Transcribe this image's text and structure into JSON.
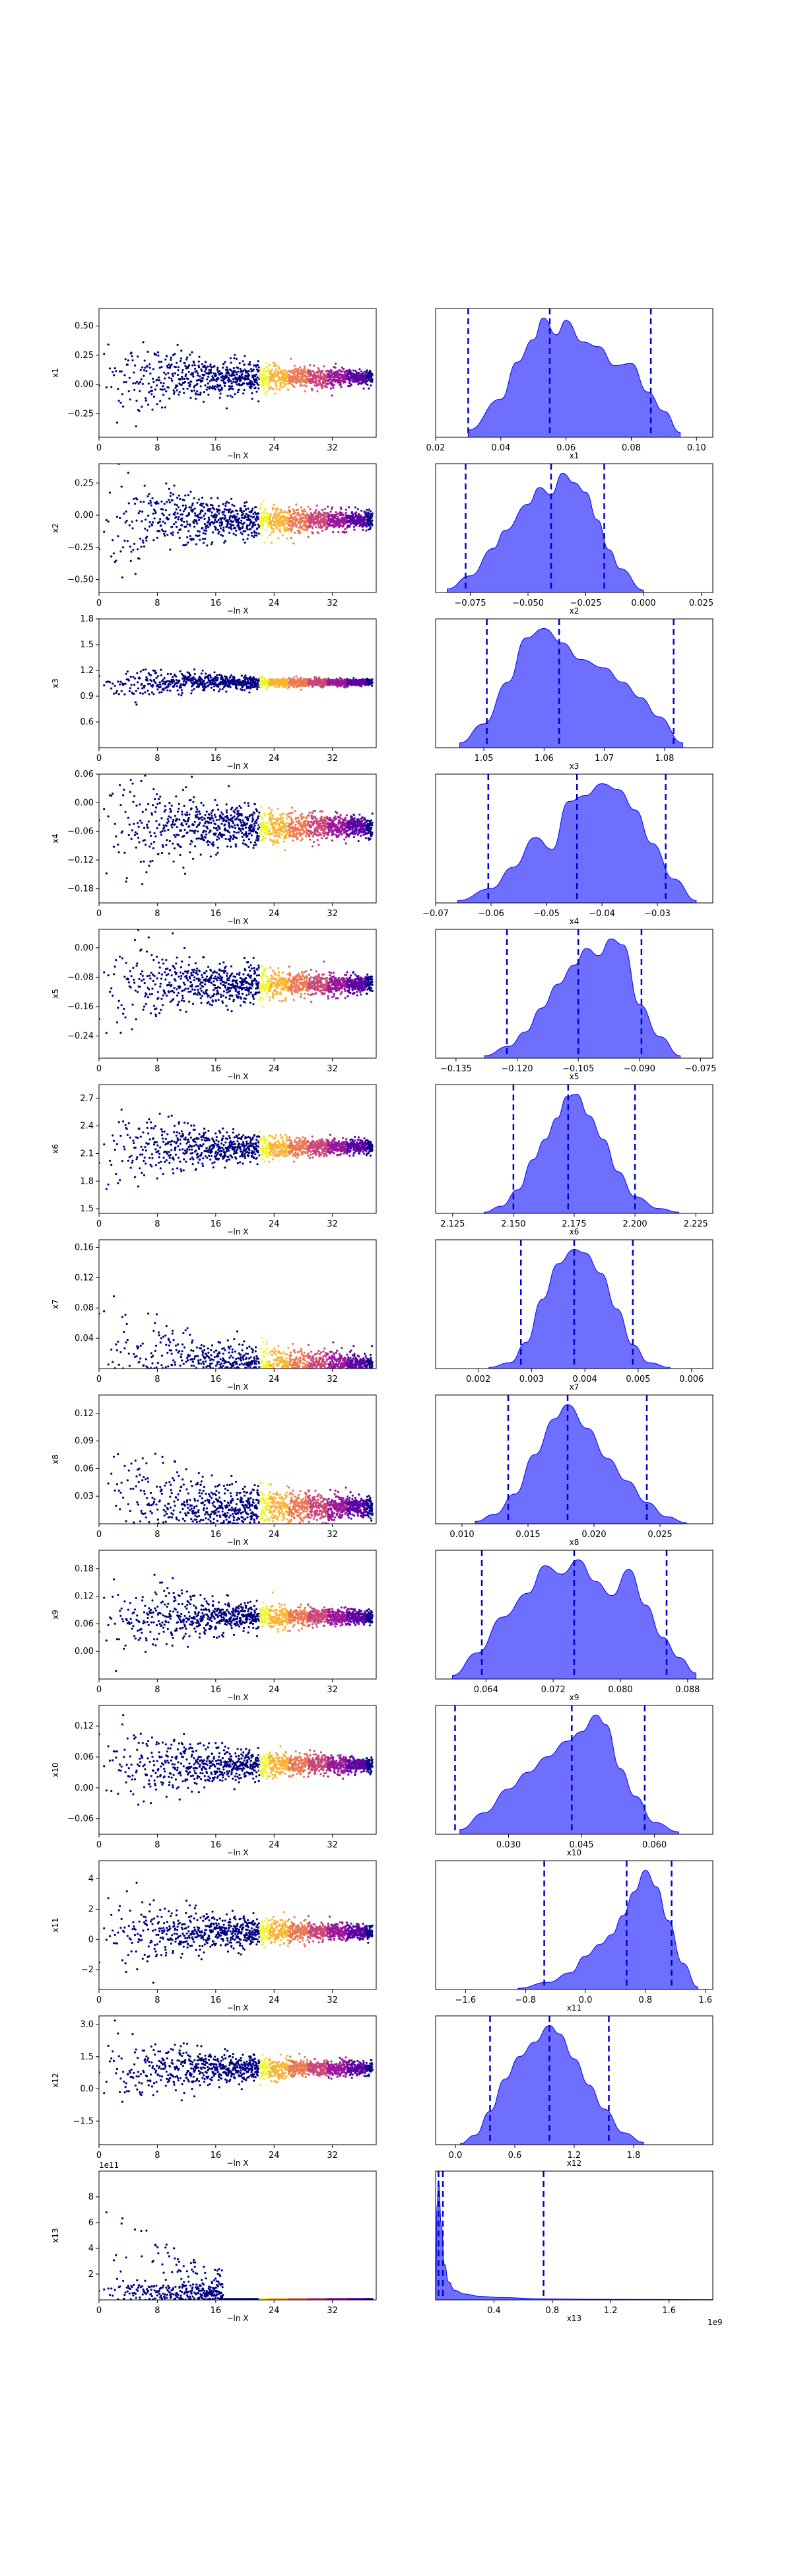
{
  "chart_data": [
    {
      "type": "scatter",
      "ylabel": "x1",
      "ylabel_sub": "1",
      "xlabel": "−ln X",
      "xlim": [
        0,
        38
      ],
      "xticks": [
        "0",
        "8",
        "16",
        "24",
        "32"
      ],
      "ylim": [
        -0.45,
        0.65
      ],
      "yticks": [
        "−0.25",
        "0.00",
        "0.25",
        "0.50"
      ],
      "ytick_values": [
        -0.25,
        0,
        0.25,
        0.5
      ],
      "start_spread": 0.22,
      "mean": 0.06
    },
    {
      "type": "area",
      "xlabel": "x1",
      "xlabel_sub": "1",
      "xlim": [
        0.02,
        0.105
      ],
      "xticks": [
        "0.02",
        "0.04",
        "0.06",
        "0.08",
        "0.10"
      ],
      "xtick_values": [
        0.02,
        0.04,
        0.06,
        0.08,
        0.1
      ],
      "x": [
        0.03,
        0.04,
        0.045,
        0.05,
        0.053,
        0.057,
        0.06,
        0.065,
        0.07,
        0.075,
        0.08,
        0.085,
        0.09,
        0.095
      ],
      "y": [
        0.06,
        0.32,
        0.63,
        0.82,
        1.0,
        0.86,
        0.98,
        0.8,
        0.76,
        0.6,
        0.62,
        0.38,
        0.22,
        0.04
      ],
      "quantile_lines": [
        0.03,
        0.055,
        0.086
      ]
    },
    {
      "type": "scatter",
      "ylabel": "x2",
      "ylabel_sub": "2",
      "xlabel": "−ln X",
      "xlim": [
        0,
        38
      ],
      "xticks": [
        "0",
        "8",
        "16",
        "24",
        "32"
      ],
      "ylim": [
        -0.6,
        0.4
      ],
      "yticks": [
        "−0.50",
        "−0.25",
        "0.00",
        "0.25"
      ],
      "ytick_values": [
        -0.5,
        -0.25,
        0,
        0.25
      ],
      "start_spread": 0.22,
      "mean": -0.04
    },
    {
      "type": "area",
      "xlabel": "x2",
      "xlabel_sub": "2",
      "xlim": [
        -0.09,
        0.03
      ],
      "xticks": [
        "−0.075",
        "−0.050",
        "−0.025",
        "0.000",
        "0.025"
      ],
      "xtick_values": [
        -0.075,
        -0.05,
        -0.025,
        0,
        0.025
      ],
      "x": [
        -0.085,
        -0.075,
        -0.065,
        -0.06,
        -0.05,
        -0.045,
        -0.04,
        -0.035,
        -0.03,
        -0.025,
        -0.02,
        -0.015,
        -0.01,
        0.0
      ],
      "y": [
        0.03,
        0.14,
        0.37,
        0.52,
        0.74,
        0.88,
        0.82,
        1.0,
        0.92,
        0.84,
        0.61,
        0.36,
        0.2,
        0.02
      ],
      "quantile_lines": [
        -0.077,
        -0.04,
        -0.017
      ]
    },
    {
      "type": "scatter",
      "ylabel": "x3",
      "ylabel_sub": "3",
      "xlabel": "−ln X",
      "xlim": [
        0,
        38
      ],
      "xticks": [
        "0",
        "8",
        "16",
        "24",
        "32"
      ],
      "ylim": [
        0.3,
        1.8
      ],
      "yticks": [
        "0.6",
        "0.9",
        "1.2",
        "1.5",
        "1.8"
      ],
      "ytick_values": [
        0.6,
        0.9,
        1.2,
        1.5,
        1.8
      ],
      "start_spread": 0.12,
      "mean": 1.06
    },
    {
      "type": "area",
      "xlabel": "x3",
      "xlabel_sub": "3",
      "xlim": [
        1.042,
        1.088
      ],
      "xticks": [
        "1.05",
        "1.06",
        "1.07",
        "1.08"
      ],
      "xtick_values": [
        1.05,
        1.06,
        1.07,
        1.08
      ],
      "x": [
        1.046,
        1.05,
        1.054,
        1.057,
        1.06,
        1.063,
        1.066,
        1.07,
        1.073,
        1.076,
        1.079,
        1.083
      ],
      "y": [
        0.04,
        0.2,
        0.55,
        0.92,
        1.0,
        0.88,
        0.74,
        0.67,
        0.55,
        0.42,
        0.26,
        0.04
      ],
      "quantile_lines": [
        1.0505,
        1.0625,
        1.0815
      ]
    },
    {
      "type": "scatter",
      "ylabel": "x4",
      "ylabel_sub": "4",
      "xlabel": "−ln X",
      "xlim": [
        0,
        38
      ],
      "xticks": [
        "0",
        "8",
        "16",
        "24",
        "32"
      ],
      "ylim": [
        -0.21,
        0.06
      ],
      "yticks": [
        "−0.18",
        "−0.12",
        "−0.06",
        "0.00",
        "0.06"
      ],
      "ytick_values": [
        -0.18,
        -0.12,
        -0.06,
        0,
        0.06
      ],
      "start_spread": 0.07,
      "mean": -0.05
    },
    {
      "type": "area",
      "xlabel": "x4",
      "xlabel_sub": "4",
      "xlim": [
        -0.07,
        -0.02
      ],
      "xticks": [
        "−0.07",
        "−0.06",
        "−0.05",
        "−0.04",
        "−0.03"
      ],
      "xtick_values": [
        -0.07,
        -0.06,
        -0.05,
        -0.04,
        -0.03
      ],
      "x": [
        -0.066,
        -0.06,
        -0.056,
        -0.052,
        -0.049,
        -0.046,
        -0.043,
        -0.04,
        -0.037,
        -0.034,
        -0.031,
        -0.027,
        -0.023
      ],
      "y": [
        0.02,
        0.12,
        0.3,
        0.55,
        0.45,
        0.85,
        0.9,
        1.0,
        0.95,
        0.78,
        0.5,
        0.2,
        0.02
      ],
      "quantile_lines": [
        -0.0605,
        -0.0445,
        -0.0285
      ]
    },
    {
      "type": "scatter",
      "ylabel": "x5",
      "ylabel_sub": "5",
      "xlabel": "−ln X",
      "xlim": [
        0,
        38
      ],
      "xticks": [
        "0",
        "8",
        "16",
        "24",
        "32"
      ],
      "ylim": [
        -0.3,
        0.05
      ],
      "yticks": [
        "−0.24",
        "−0.16",
        "−0.08",
        "0.00"
      ],
      "ytick_values": [
        -0.24,
        -0.16,
        -0.08,
        0
      ],
      "start_spread": 0.08,
      "mean": -0.1
    },
    {
      "type": "area",
      "xlabel": "x5",
      "xlabel_sub": "5",
      "xlim": [
        -0.14,
        -0.072
      ],
      "xticks": [
        "−0.135",
        "−0.120",
        "−0.105",
        "−0.090",
        "−0.075"
      ],
      "xtick_values": [
        -0.135,
        -0.12,
        -0.105,
        -0.09,
        -0.075
      ],
      "x": [
        -0.128,
        -0.122,
        -0.118,
        -0.114,
        -0.11,
        -0.106,
        -0.103,
        -0.1,
        -0.097,
        -0.094,
        -0.09,
        -0.085,
        -0.08
      ],
      "y": [
        0.02,
        0.1,
        0.22,
        0.42,
        0.62,
        0.78,
        0.92,
        0.86,
        1.0,
        0.95,
        0.45,
        0.18,
        0.02
      ],
      "quantile_lines": [
        -0.1225,
        -0.105,
        -0.0895
      ]
    },
    {
      "type": "scatter",
      "ylabel": "x6",
      "ylabel_sub": "6",
      "xlabel": "−ln X",
      "xlim": [
        0,
        38
      ],
      "xticks": [
        "0",
        "8",
        "16",
        "24",
        "32"
      ],
      "ylim": [
        1.45,
        2.85
      ],
      "yticks": [
        "1.5",
        "1.8",
        "2.1",
        "2.4",
        "2.7"
      ],
      "ytick_values": [
        1.5,
        1.8,
        2.1,
        2.4,
        2.7
      ],
      "start_spread": 0.25,
      "mean": 2.17
    },
    {
      "type": "area",
      "xlabel": "x6",
      "xlabel_sub": "6",
      "xlim": [
        2.118,
        2.232
      ],
      "xticks": [
        "2.125",
        "2.150",
        "2.175",
        "2.200",
        "2.225"
      ],
      "xtick_values": [
        2.125,
        2.15,
        2.175,
        2.2,
        2.225
      ],
      "x": [
        2.138,
        2.145,
        2.152,
        2.158,
        2.163,
        2.168,
        2.172,
        2.176,
        2.181,
        2.187,
        2.193,
        2.2,
        2.21,
        2.218
      ],
      "y": [
        0.01,
        0.06,
        0.2,
        0.45,
        0.62,
        0.8,
        0.98,
        1.0,
        0.82,
        0.62,
        0.35,
        0.14,
        0.04,
        0.01
      ],
      "quantile_lines": [
        2.15,
        2.1725,
        2.2
      ]
    },
    {
      "type": "scatter",
      "ylabel": "x7",
      "ylabel_sub": "7",
      "xlabel": "−ln X",
      "xlim": [
        0,
        38
      ],
      "xticks": [
        "0",
        "8",
        "16",
        "24",
        "32"
      ],
      "ylim": [
        0,
        0.17
      ],
      "yticks": [
        "0.04",
        "0.08",
        "0.12",
        "0.16"
      ],
      "ytick_values": [
        0.04,
        0.08,
        0.12,
        0.16
      ],
      "start_spread": 0.05,
      "mean": 0.004
    },
    {
      "type": "area",
      "xlabel": "x7",
      "xlabel_sub": "7",
      "xlim": [
        0.0012,
        0.0064
      ],
      "xticks": [
        "0.002",
        "0.003",
        "0.004",
        "0.005",
        "0.006"
      ],
      "xtick_values": [
        0.002,
        0.003,
        0.004,
        0.005,
        0.006
      ],
      "x": [
        0.0022,
        0.0026,
        0.0029,
        0.0032,
        0.0035,
        0.0038,
        0.004,
        0.0043,
        0.0046,
        0.0049,
        0.0052,
        0.0056
      ],
      "y": [
        0.01,
        0.05,
        0.22,
        0.58,
        0.88,
        1.0,
        0.97,
        0.8,
        0.5,
        0.2,
        0.05,
        0.01
      ],
      "quantile_lines": [
        0.0028,
        0.0038,
        0.0049
      ]
    },
    {
      "type": "scatter",
      "ylabel": "x8",
      "ylabel_sub": "8",
      "xlabel": "−ln X",
      "xlim": [
        0,
        38
      ],
      "xticks": [
        "0",
        "8",
        "16",
        "24",
        "32"
      ],
      "ylim": [
        0,
        0.14
      ],
      "yticks": [
        "0.03",
        "0.06",
        "0.09",
        "0.12"
      ],
      "ytick_values": [
        0.03,
        0.06,
        0.09,
        0.12
      ],
      "start_spread": 0.04,
      "mean": 0.018
    },
    {
      "type": "area",
      "xlabel": "x8",
      "xlabel_sub": "8",
      "xlim": [
        0.008,
        0.029
      ],
      "xticks": [
        "0.010",
        "0.015",
        "0.020",
        "0.025"
      ],
      "xtick_values": [
        0.01,
        0.015,
        0.02,
        0.025
      ],
      "x": [
        0.011,
        0.0125,
        0.014,
        0.0155,
        0.017,
        0.018,
        0.0195,
        0.021,
        0.0225,
        0.024,
        0.0255,
        0.027
      ],
      "y": [
        0.02,
        0.08,
        0.25,
        0.58,
        0.88,
        1.0,
        0.8,
        0.55,
        0.36,
        0.18,
        0.06,
        0.01
      ],
      "quantile_lines": [
        0.0135,
        0.018,
        0.024
      ]
    },
    {
      "type": "scatter",
      "ylabel": "x9",
      "ylabel_sub": "9",
      "xlabel": "−ln X",
      "xlim": [
        0,
        38
      ],
      "xticks": [
        "0",
        "8",
        "16",
        "24",
        "32"
      ],
      "ylim": [
        -0.06,
        0.22
      ],
      "yticks": [
        "0.00",
        "0.06",
        "0.12",
        "0.18"
      ],
      "ytick_values": [
        0,
        0.06,
        0.12,
        0.18
      ],
      "start_spread": 0.05,
      "mean": 0.075
    },
    {
      "type": "area",
      "xlabel": "x9",
      "xlabel_sub": "9",
      "xlim": [
        0.058,
        0.091
      ],
      "xticks": [
        "0.064",
        "0.072",
        "0.080",
        "0.088"
      ],
      "xtick_values": [
        0.064,
        0.072,
        0.08,
        0.088
      ],
      "x": [
        0.06,
        0.063,
        0.066,
        0.069,
        0.071,
        0.073,
        0.075,
        0.077,
        0.079,
        0.081,
        0.083,
        0.085,
        0.087,
        0.089
      ],
      "y": [
        0.03,
        0.22,
        0.52,
        0.72,
        0.95,
        0.88,
        1.0,
        0.82,
        0.7,
        0.92,
        0.62,
        0.35,
        0.18,
        0.05
      ],
      "quantile_lines": [
        0.0635,
        0.0745,
        0.0855
      ]
    },
    {
      "type": "scatter",
      "ylabel": "x10",
      "ylabel_sub": "10",
      "xlabel": "−ln X",
      "xlim": [
        0,
        38
      ],
      "xticks": [
        "0",
        "8",
        "16",
        "24",
        "32"
      ],
      "ylim": [
        -0.09,
        0.16
      ],
      "yticks": [
        "−0.06",
        "0.00",
        "0.06",
        "0.12"
      ],
      "ytick_values": [
        -0.06,
        0,
        0.06,
        0.12
      ],
      "start_spread": 0.05,
      "mean": 0.045
    },
    {
      "type": "area",
      "xlabel": "x10",
      "xlabel_sub": "10",
      "xlim": [
        0.015,
        0.072
      ],
      "xticks": [
        "0.030",
        "0.045",
        "0.060"
      ],
      "xtick_values": [
        0.03,
        0.045,
        0.06
      ],
      "x": [
        0.02,
        0.025,
        0.03,
        0.034,
        0.038,
        0.042,
        0.045,
        0.048,
        0.05,
        0.053,
        0.056,
        0.06,
        0.065
      ],
      "y": [
        0.04,
        0.18,
        0.38,
        0.52,
        0.65,
        0.78,
        0.86,
        1.0,
        0.92,
        0.55,
        0.32,
        0.1,
        0.02
      ],
      "quantile_lines": [
        0.019,
        0.043,
        0.058
      ]
    },
    {
      "type": "scatter",
      "ylabel": "x11",
      "ylabel_sub": "11",
      "xlabel": "−ln X",
      "xlim": [
        0,
        38
      ],
      "xticks": [
        "0",
        "8",
        "16",
        "24",
        "32"
      ],
      "ylim": [
        -3.3,
        5.2
      ],
      "yticks": [
        "−2",
        "0",
        "2",
        "4"
      ],
      "ytick_values": [
        -2,
        0,
        2,
        4
      ],
      "start_spread": 1.6,
      "mean": 0.5
    },
    {
      "type": "area",
      "xlabel": "x11",
      "xlabel_sub": "11",
      "xlim": [
        -2.0,
        1.7
      ],
      "xticks": [
        "−1.6",
        "−0.8",
        "0.0",
        "0.8",
        "1.6"
      ],
      "xtick_values": [
        -1.6,
        -0.8,
        0,
        0.8,
        1.6
      ],
      "x": [
        -0.9,
        -0.5,
        -0.2,
        0.0,
        0.2,
        0.35,
        0.5,
        0.65,
        0.8,
        0.95,
        1.1,
        1.3,
        1.5
      ],
      "y": [
        0.01,
        0.06,
        0.14,
        0.28,
        0.38,
        0.46,
        0.62,
        0.82,
        1.0,
        0.86,
        0.58,
        0.22,
        0.02
      ],
      "quantile_lines": [
        -0.55,
        0.55,
        1.15
      ]
    },
    {
      "type": "scatter",
      "ylabel": "x12",
      "ylabel_sub": "12",
      "xlabel": "−ln X",
      "xlim": [
        0,
        38
      ],
      "xticks": [
        "0",
        "8",
        "16",
        "24",
        "32"
      ],
      "ylim": [
        -2.6,
        3.4
      ],
      "yticks": [
        "−1.5",
        "0.0",
        "1.5",
        "3.0"
      ],
      "ytick_values": [
        -1.5,
        0,
        1.5,
        3
      ],
      "start_spread": 1.0,
      "mean": 0.95
    },
    {
      "type": "area",
      "xlabel": "x12",
      "xlabel_sub": "12",
      "xlim": [
        -0.2,
        2.6
      ],
      "xticks": [
        "0.0",
        "0.6",
        "1.2",
        "1.8"
      ],
      "xtick_values": [
        0,
        0.6,
        1.2,
        1.8
      ],
      "x": [
        0.05,
        0.2,
        0.35,
        0.5,
        0.65,
        0.8,
        0.95,
        1.05,
        1.2,
        1.35,
        1.5,
        1.7,
        1.9
      ],
      "y": [
        0.01,
        0.08,
        0.28,
        0.55,
        0.74,
        0.86,
        1.0,
        0.93,
        0.72,
        0.5,
        0.3,
        0.1,
        0.02
      ],
      "quantile_lines": [
        0.35,
        0.95,
        1.55
      ]
    },
    {
      "type": "scatter",
      "ylabel": "x13",
      "ylabel_sub": "13",
      "xlabel": "−ln X",
      "xlim": [
        0,
        38
      ],
      "xticks": [
        "0",
        "8",
        "16",
        "24",
        "32"
      ],
      "ylim": [
        0,
        10
      ],
      "yticks": [
        "2",
        "4",
        "6",
        "8"
      ],
      "ytick_values": [
        2,
        4,
        6,
        8
      ],
      "offset_text": "1e11",
      "start_spread": 0,
      "mean": 0,
      "heavy_tail": true
    },
    {
      "type": "area",
      "xlabel": "x13",
      "xlabel_sub": "13",
      "xlim": [
        0,
        1.9
      ],
      "xticks": [
        "0.4",
        "0.8",
        "1.2",
        "1.6"
      ],
      "xtick_values": [
        0.4,
        0.8,
        1.2,
        1.6
      ],
      "offset_text": "1e9",
      "x": [
        0.0,
        0.01,
        0.02,
        0.04,
        0.06,
        0.09,
        0.13,
        0.2,
        0.3,
        0.45,
        0.7,
        1.0,
        1.4,
        1.9
      ],
      "y": [
        0.0,
        0.8,
        1.0,
        0.62,
        0.3,
        0.15,
        0.08,
        0.05,
        0.03,
        0.02,
        0.01,
        0.006,
        0.004,
        0.002
      ],
      "quantile_lines": [
        0.02,
        0.05,
        0.74
      ]
    }
  ],
  "colors": {
    "fill": "#6666ff",
    "fill_edge": "#0000ff",
    "quantile": "#0000cc",
    "scatter_dark": "#00007f",
    "colormap": [
      "#0d0887",
      "#5b02a3",
      "#9a179b",
      "#cb4678",
      "#eb7852",
      "#fbb32f",
      "#eff821"
    ]
  }
}
